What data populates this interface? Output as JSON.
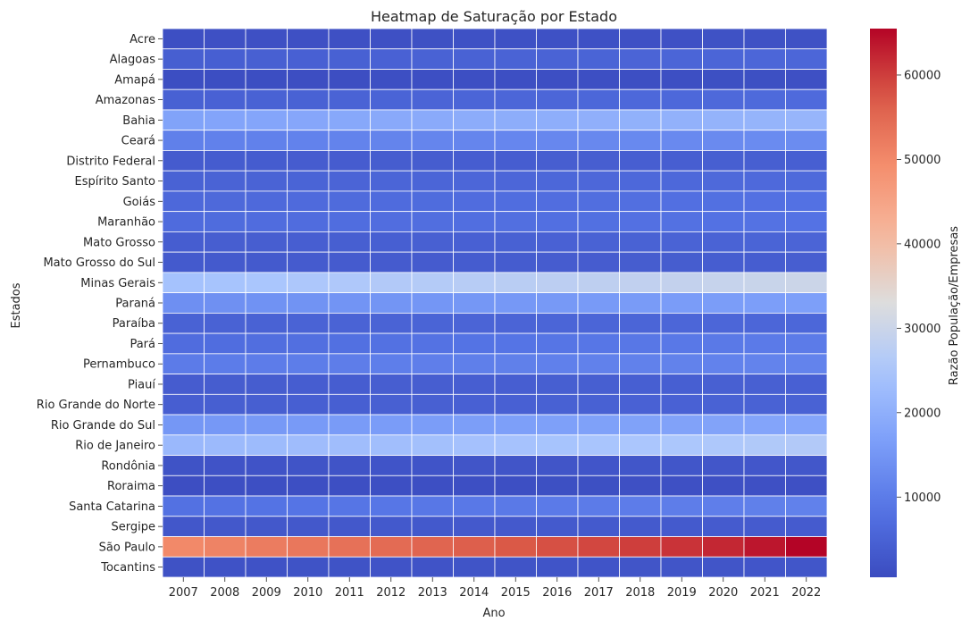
{
  "chart_data": {
    "type": "heatmap",
    "title": "Heatmap de Saturação por Estado",
    "xlabel": "Ano",
    "ylabel": "Estados",
    "colorbar_label": "Razão População/Empresas",
    "colormap": "coolwarm",
    "colorbar_range": [
      500,
      65500
    ],
    "colorbar_ticks": [
      10000,
      20000,
      30000,
      40000,
      50000,
      60000
    ],
    "x": [
      "2007",
      "2008",
      "2009",
      "2010",
      "2011",
      "2012",
      "2013",
      "2014",
      "2015",
      "2016",
      "2017",
      "2018",
      "2019",
      "2020",
      "2021",
      "2022"
    ],
    "y": [
      "Acre",
      "Alagoas",
      "Amapá",
      "Amazonas",
      "Bahia",
      "Ceará",
      "Distrito Federal",
      "Espírito Santo",
      "Goiás",
      "Maranhão",
      "Mato Grosso",
      "Mato Grosso do Sul",
      "Minas Gerais",
      "Paraná",
      "Paraíba",
      "Pará",
      "Pernambuco",
      "Piauí",
      "Rio Grande do Norte",
      "Rio Grande do Sul",
      "Rio de Janeiro",
      "Rondônia",
      "Roraima",
      "Santa Catarina",
      "Sergipe",
      "São Paulo",
      "Tocantins"
    ],
    "values": [
      [
        1200,
        1300,
        1300,
        1350,
        1400,
        1400,
        1450,
        1500,
        1500,
        1550,
        1550,
        1600,
        1600,
        1650,
        1650,
        1700
      ],
      [
        4300,
        4400,
        4500,
        4600,
        4700,
        4800,
        4900,
        5000,
        5100,
        5200,
        5300,
        5400,
        5500,
        5600,
        5700,
        5800
      ],
      [
        900,
        950,
        950,
        1000,
        1000,
        1050,
        1050,
        1100,
        1100,
        1150,
        1150,
        1200,
        1200,
        1250,
        1250,
        1300
      ],
      [
        4700,
        4800,
        4900,
        5000,
        5100,
        5300,
        5400,
        5500,
        5700,
        5800,
        5900,
        6100,
        6200,
        6300,
        6500,
        6600
      ],
      [
        17500,
        17800,
        18000,
        18300,
        18600,
        18900,
        19100,
        19400,
        19700,
        19900,
        20100,
        20400,
        20600,
        20900,
        21100,
        21400
      ],
      [
        10800,
        11000,
        11100,
        11300,
        11500,
        11600,
        11800,
        11900,
        12100,
        12200,
        12400,
        12500,
        12600,
        12800,
        12900,
        13100
      ],
      [
        3600,
        3700,
        3700,
        3800,
        3800,
        3900,
        3900,
        4000,
        4000,
        4100,
        4100,
        4200,
        4200,
        4300,
        4300,
        4400
      ],
      [
        5000,
        5100,
        5200,
        5300,
        5400,
        5500,
        5600,
        5700,
        5800,
        5900,
        6000,
        6100,
        6200,
        6300,
        6400,
        6500
      ],
      [
        6200,
        6300,
        6400,
        6600,
        6700,
        6800,
        6900,
        7100,
        7200,
        7300,
        7400,
        7600,
        7700,
        7800,
        7900,
        8100
      ],
      [
        6800,
        6900,
        7000,
        7100,
        7200,
        7300,
        7400,
        7500,
        7600,
        7700,
        7800,
        7900,
        8000,
        8100,
        8200,
        8300
      ],
      [
        4000,
        4100,
        4100,
        4200,
        4300,
        4400,
        4500,
        4600,
        4700,
        4800,
        4900,
        5000,
        5100,
        5200,
        5300,
        5400
      ],
      [
        3300,
        3400,
        3400,
        3500,
        3500,
        3600,
        3600,
        3700,
        3700,
        3800,
        3800,
        3900,
        3900,
        4000,
        4000,
        4100
      ],
      [
        24000,
        24400,
        24800,
        25300,
        25700,
        26100,
        26500,
        26900,
        27300,
        27700,
        28100,
        28500,
        28900,
        29300,
        29700,
        30100
      ],
      [
        13800,
        14000,
        14200,
        14400,
        14600,
        14800,
        15000,
        15200,
        15400,
        15600,
        15800,
        16000,
        16200,
        16400,
        16600,
        16800
      ],
      [
        4900,
        5000,
        5000,
        5100,
        5200,
        5200,
        5300,
        5400,
        5400,
        5500,
        5600,
        5600,
        5700,
        5800,
        5800,
        5900
      ],
      [
        7000,
        7200,
        7400,
        7600,
        7800,
        8000,
        8200,
        8400,
        8600,
        8800,
        9000,
        9200,
        9400,
        9600,
        9800,
        10000
      ],
      [
        10000,
        10100,
        10200,
        10300,
        10400,
        10500,
        10600,
        10700,
        10800,
        10900,
        11000,
        11100,
        11200,
        11300,
        11400,
        11500
      ],
      [
        3800,
        3900,
        3900,
        4000,
        4000,
        4100,
        4100,
        4200,
        4200,
        4300,
        4300,
        4400,
        4400,
        4500,
        4500,
        4600
      ],
      [
        4200,
        4300,
        4300,
        4400,
        4400,
        4500,
        4500,
        4600,
        4600,
        4700,
        4700,
        4800,
        4800,
        4900,
        4900,
        5000
      ],
      [
        15200,
        15400,
        15600,
        15800,
        16000,
        16200,
        16400,
        16500,
        16700,
        16900,
        17100,
        17300,
        17400,
        17600,
        17800,
        18000
      ],
      [
        22000,
        22300,
        22500,
        22800,
        23100,
        23300,
        23600,
        23900,
        24100,
        24400,
        24700,
        25000,
        25200,
        25500,
        25800,
        26100
      ],
      [
        1900,
        1950,
        2000,
        2050,
        2100,
        2150,
        2200,
        2250,
        2300,
        2350,
        2400,
        2450,
        2500,
        2550,
        2600,
        2650
      ],
      [
        1000,
        1050,
        1050,
        1100,
        1100,
        1150,
        1150,
        1200,
        1200,
        1250,
        1250,
        1300,
        1300,
        1350,
        1350,
        1400
      ],
      [
        8000,
        8200,
        8400,
        8600,
        8800,
        9000,
        9200,
        9400,
        9600,
        9800,
        10000,
        10200,
        10400,
        10600,
        10800,
        11000
      ],
      [
        2800,
        2900,
        2900,
        3000,
        3000,
        3100,
        3100,
        3200,
        3200,
        3300,
        3300,
        3400,
        3400,
        3500,
        3500,
        3600
      ],
      [
        50000,
        51000,
        52000,
        52800,
        53700,
        54600,
        55500,
        56400,
        57300,
        58200,
        59100,
        60000,
        61000,
        62200,
        63800,
        65500
      ],
      [
        1700,
        1750,
        1800,
        1850,
        1900,
        1950,
        2000,
        2050,
        2100,
        2150,
        2200,
        2250,
        2300,
        2350,
        2400,
        2450
      ]
    ]
  }
}
